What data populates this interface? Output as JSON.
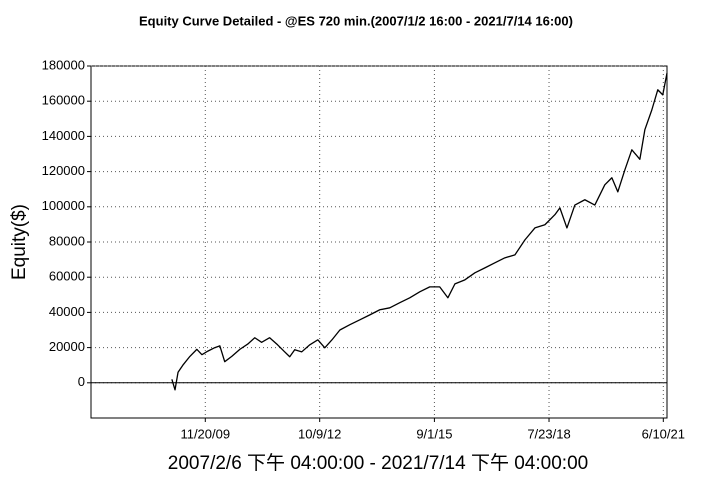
{
  "chart_data": {
    "type": "line",
    "title": "Equity Curve Detailed - @ES 720 min.(2007/1/2 16:00 - 2021/7/14 16:00)",
    "x_label": "2007/2/6 下午 04:00:00 - 2021/7/14 下午 04:00:00",
    "y_label": "Equity($)",
    "color": "#000000",
    "grid": true,
    "xlim": [
      "1/2/07",
      "7/14/21"
    ],
    "xticks": [
      "11/20/09",
      "10/9/12",
      "9/1/15",
      "7/23/18",
      "6/10/21"
    ],
    "ylim": [
      -20000,
      180000
    ],
    "yticks": [
      0,
      20000,
      40000,
      60000,
      80000,
      100000,
      120000,
      140000,
      160000,
      180000
    ],
    "x": [
      "1/16/09",
      "2/14/09",
      "3/14/09",
      "4/27/09",
      "7/1/09",
      "9/3/09",
      "10/20/09",
      "12/14/09",
      "2/17/10",
      "4/3/10",
      "5/18/10",
      "7/22/10",
      "10/4/10",
      "12/16/10",
      "2/19/11",
      "4/23/11",
      "7/6/11",
      "9/17/11",
      "11/21/11",
      "1/7/12",
      "2/22/12",
      "4/27/12",
      "7/10/12",
      "9/22/12",
      "11/25/12",
      "1/30/13",
      "4/13/13",
      "7/14/13",
      "10/14/13",
      "1/14/14",
      "4/16/14",
      "7/17/14",
      "10/17/14",
      "1/17/15",
      "4/19/15",
      "7/20/15",
      "10/20/15",
      "1/3/16",
      "3/8/16",
      "6/8/16",
      "9/8/16",
      "12/9/16",
      "3/11/17",
      "6/11/17",
      "9/12/17",
      "12/13/17",
      "3/15/18",
      "6/15/18",
      "9/15/18",
      "10/31/18",
      "1/4/19",
      "3/18/19",
      "6/18/19",
      "9/18/19",
      "12/19/19",
      "2/22/20",
      "4/17/20",
      "6/21/20",
      "8/24/20",
      "11/6/20",
      "12/22/20",
      "2/24/21",
      "4/20/21",
      "6/5/21",
      "7/14/21"
    ],
    "values": [
      2000,
      -4000,
      6000,
      10000,
      15000,
      19000,
      16000,
      18000,
      20000,
      21000,
      12000,
      15000,
      19000,
      22000,
      25600,
      23000,
      25600,
      21600,
      17600,
      14800,
      18800,
      17600,
      21600,
      24400,
      19900,
      24400,
      30000,
      33000,
      35800,
      38600,
      41500,
      42600,
      45500,
      48300,
      51700,
      54500,
      54500,
      48300,
      56200,
      58500,
      62500,
      65300,
      68200,
      71000,
      72700,
      81200,
      88000,
      89800,
      95500,
      99400,
      88000,
      101000,
      104000,
      101000,
      112500,
      116500,
      108500,
      121000,
      132400,
      127000,
      143800,
      155000,
      166500,
      163600,
      176000
    ]
  }
}
